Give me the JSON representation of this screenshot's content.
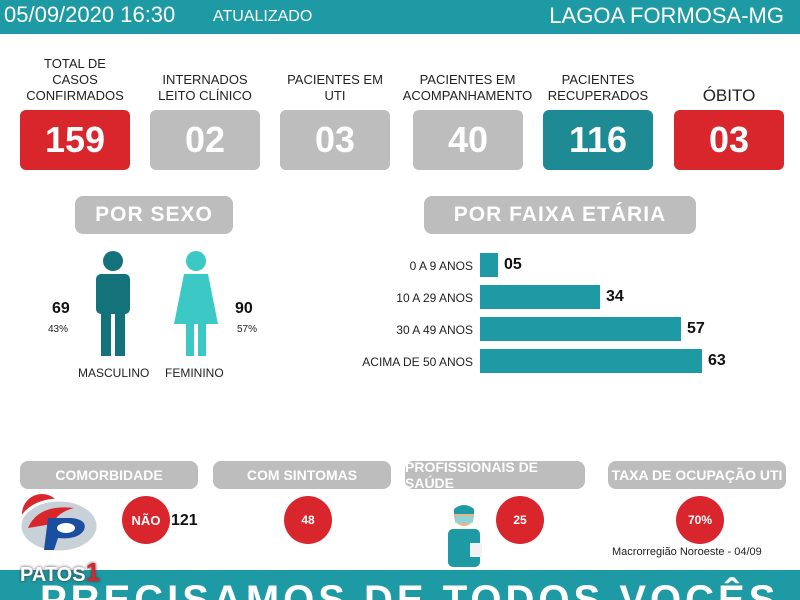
{
  "header": {
    "datetime": "05/09/2020 16:30",
    "updated_label": "ATUALIZADO",
    "city": "LAGOA FORMOSA-MG"
  },
  "stats": [
    {
      "label": "TOTAL DE CASOS CONFIRMADOS",
      "value": "159",
      "color": "#d9262c"
    },
    {
      "label": "INTERNADOS LEITO CLÍNICO",
      "value": "02",
      "color": "#bdbdbd"
    },
    {
      "label": "PACIENTES EM UTI",
      "value": "03",
      "color": "#bdbdbd"
    },
    {
      "label": "PACIENTES EM ACOMPANHAMENTO",
      "value": "40",
      "color": "#bdbdbd"
    },
    {
      "label": "PACIENTES RECUPERADOS",
      "value": "116",
      "color": "#1e8a94"
    },
    {
      "label": "ÓBITO",
      "value": "03",
      "color": "#d9262c"
    }
  ],
  "sex": {
    "title": "POR SEXO",
    "male": {
      "count": "69",
      "pct": "43%",
      "label": "MASCULINO",
      "color": "#14737a"
    },
    "female": {
      "count": "90",
      "pct": "57%",
      "label": "FEMININO",
      "color": "#3cc8c4"
    }
  },
  "age": {
    "title": "POR FAIXA ETÁRIA",
    "groups": [
      {
        "label": "0 A 9 ANOS",
        "value": "05",
        "n": 5
      },
      {
        "label": "10 A 29 ANOS",
        "value": "34",
        "n": 34
      },
      {
        "label": "30 A 49 ANOS",
        "value": "57",
        "n": 57
      },
      {
        "label": "ACIMA DE 50 ANOS",
        "value": "63",
        "n": 63
      }
    ]
  },
  "bottom": {
    "comorbidity": {
      "title": "COMORBIDADE",
      "no_label": "NÃO",
      "no_value": "121"
    },
    "symptoms": {
      "title": "COM SINTOMAS",
      "value": "48"
    },
    "health_workers": {
      "title": "PROFISSIONAIS DE SAÚDE",
      "value": "25"
    },
    "icu_rate": {
      "title": "TAXA DE OCUPAÇÃO UTI",
      "value": "70%"
    },
    "macro": "Macrorregião Noroeste - 04/09"
  },
  "banner": "PRECISAMOS DE TODOS VOCÊS",
  "logo": {
    "text": "PATOS",
    "num": "1"
  }
}
